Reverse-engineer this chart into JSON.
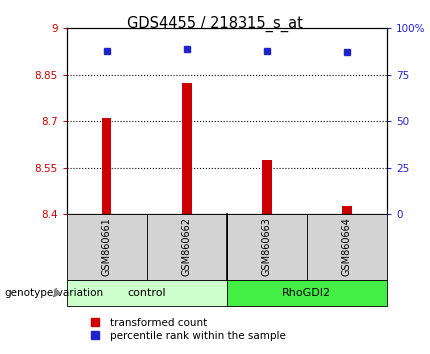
{
  "title": "GDS4455 / 218315_s_at",
  "samples": [
    "GSM860661",
    "GSM860662",
    "GSM860663",
    "GSM860664"
  ],
  "bar_values": [
    8.71,
    8.825,
    8.575,
    8.425
  ],
  "bar_bottom": 8.4,
  "percentile_values": [
    88,
    89,
    88,
    87
  ],
  "bar_color": "#cc0000",
  "dot_color": "#2222cc",
  "ylim_left": [
    8.4,
    9.0
  ],
  "ylim_right": [
    0,
    100
  ],
  "yticks_left": [
    8.4,
    8.55,
    8.7,
    8.85,
    9.0
  ],
  "ytick_labels_left": [
    "8.4",
    "8.55",
    "8.7",
    "8.85",
    "9"
  ],
  "yticks_right": [
    0,
    25,
    50,
    75,
    100
  ],
  "ytick_labels_right": [
    "0",
    "25",
    "50",
    "75",
    "100%"
  ],
  "hlines": [
    8.55,
    8.7,
    8.85
  ],
  "groups": [
    {
      "label": "control",
      "indices": [
        0,
        1
      ],
      "color": "#ccffcc"
    },
    {
      "label": "RhoGDI2",
      "indices": [
        2,
        3
      ],
      "color": "#44ee44"
    }
  ],
  "group_row_label": "genotype/variation",
  "legend_bar_label": "transformed count",
  "legend_dot_label": "percentile rank within the sample",
  "bar_width": 0.12,
  "x_positions": [
    1,
    2,
    3,
    4
  ],
  "xlim": [
    0.5,
    4.5
  ]
}
